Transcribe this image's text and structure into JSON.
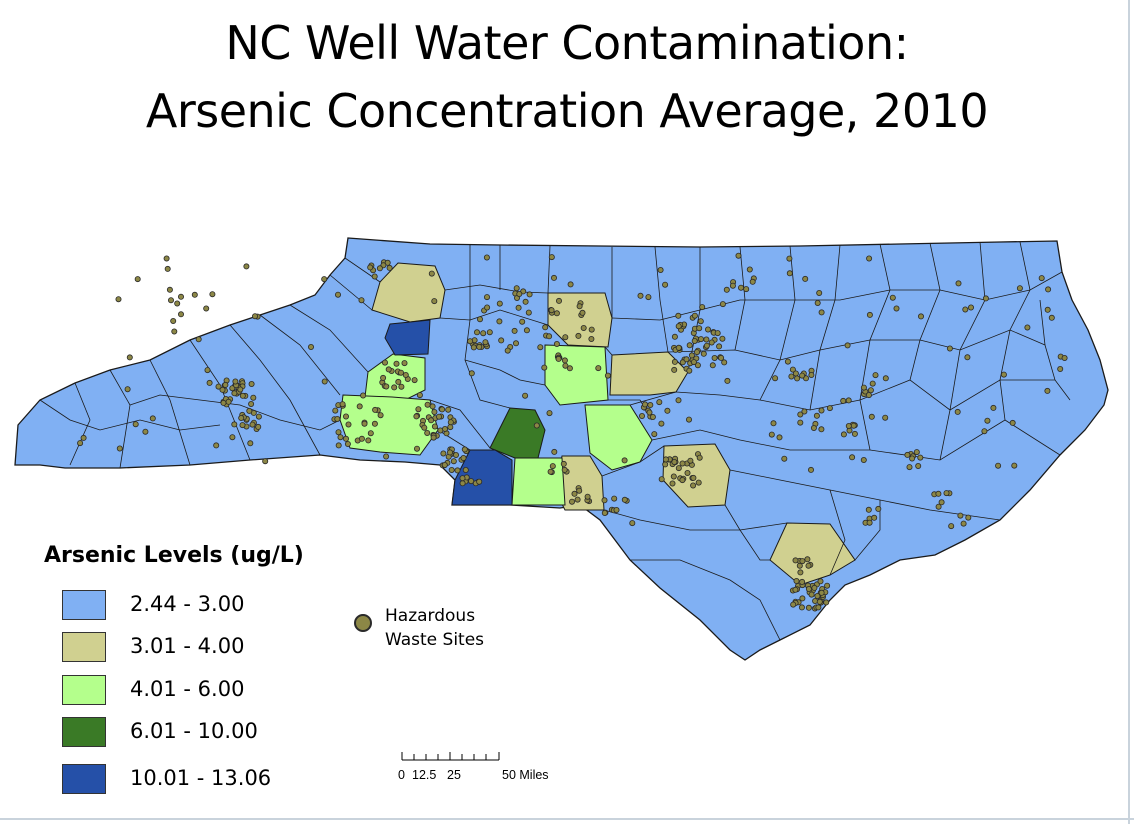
{
  "title": {
    "line1": "NC Well Water Contamination:",
    "line2": "Arsenic Concentration Average, 2010"
  },
  "legend": {
    "title": "Arsenic Levels (ug/L)",
    "classes": [
      {
        "label": "2.44 - 3.00",
        "color": "#80b0f3"
      },
      {
        "label": "3.01 - 4.00",
        "color": "#d0d090"
      },
      {
        "label": "4.01 - 6.00",
        "color": "#b4ff8c"
      },
      {
        "label": "6.01 - 10.00",
        "color": "#3a7a26"
      },
      {
        "label": "10.01 - 13.06",
        "color": "#2550a8"
      }
    ]
  },
  "hazard": {
    "label_line1": "Hazardous",
    "label_line2": "Waste Sites",
    "color": "#8c8746"
  },
  "scale_bar": {
    "labels": [
      "0",
      "12.5",
      "25",
      "50 Miles"
    ]
  }
}
